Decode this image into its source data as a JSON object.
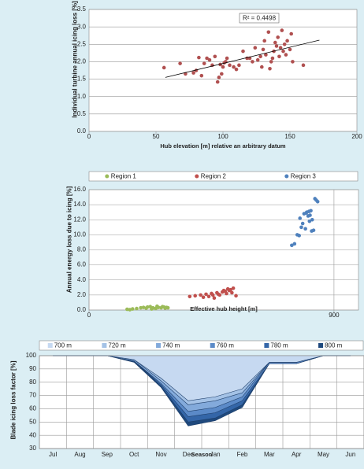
{
  "chart_data": [
    {
      "type": "scatter",
      "color": "#b05050",
      "x": [
        56,
        68,
        72,
        78,
        80,
        82,
        84,
        86,
        88,
        90,
        92,
        94,
        96,
        97,
        98,
        99,
        100,
        101,
        102,
        103,
        105,
        108,
        110,
        112,
        115,
        118,
        120,
        122,
        124,
        126,
        128,
        129,
        130,
        131,
        132,
        134,
        135,
        136,
        137,
        138,
        139,
        140,
        141,
        142,
        143,
        144,
        145,
        146,
        147,
        148,
        150,
        151,
        152,
        160
      ],
      "values": [
        1.83,
        1.95,
        1.65,
        1.68,
        1.75,
        2.12,
        1.6,
        1.95,
        2.1,
        2.05,
        1.9,
        2.15,
        1.42,
        1.55,
        1.92,
        1.65,
        1.85,
        1.97,
        2.0,
        2.1,
        1.9,
        1.85,
        1.78,
        1.9,
        2.3,
        2.1,
        2.1,
        2.0,
        2.4,
        2.05,
        2.15,
        1.85,
        2.35,
        2.6,
        2.2,
        2.85,
        1.8,
        2.0,
        2.1,
        2.3,
        2.55,
        2.45,
        2.7,
        2.15,
        2.4,
        2.9,
        2.3,
        2.5,
        2.2,
        2.6,
        2.35,
        2.8,
        2.0,
        1.9
      ],
      "trendline": {
        "x": [
          57,
          172
        ],
        "values": [
          1.55,
          2.62
        ],
        "label": "R² = 0.4498"
      },
      "xlabel": "Hub elevation [m] relative an arbitrary datum",
      "ylabel": "Individual turbine annual icing loss [%]",
      "xlim": [
        0,
        200
      ],
      "xticks": [
        0,
        50,
        100,
        150,
        200
      ],
      "ylim": [
        0,
        3.5
      ],
      "yticks": [
        {
          "value": 0,
          "label": "0.0"
        },
        {
          "value": 0.5,
          "label": "0.5"
        },
        {
          "value": 1,
          "label": "1.0"
        },
        {
          "value": 1.5,
          "label": "1.5"
        },
        {
          "value": 2,
          "label": "2.0"
        },
        {
          "value": 2.5,
          "label": "2.5"
        },
        {
          "value": 3,
          "label": "3.0"
        },
        {
          "value": 3.5,
          "label": "3.5"
        }
      ],
      "grid": true
    },
    {
      "type": "scatter",
      "series": [
        {
          "name": "Region 1",
          "color": "#9bbb59",
          "x": [
            140,
            150,
            160,
            175,
            190,
            200,
            210,
            215,
            225,
            235,
            245,
            255,
            265,
            275,
            280,
            290,
            250,
            230,
            270,
            285
          ],
          "values": [
            0.1,
            0.05,
            0.15,
            0.2,
            0.3,
            0.35,
            0.25,
            0.4,
            0.45,
            0.3,
            0.2,
            0.35,
            0.3,
            0.4,
            0.25,
            0.3,
            0.5,
            0.15,
            0.45,
            0.35
          ]
        },
        {
          "name": "Region 2",
          "color": "#c0504d",
          "x": [
            370,
            390,
            410,
            420,
            430,
            440,
            450,
            460,
            470,
            480,
            490,
            500,
            505,
            510,
            515,
            520,
            525,
            530,
            540,
            455,
            475,
            495
          ],
          "values": [
            1.8,
            1.9,
            2.0,
            1.7,
            2.1,
            1.8,
            2.2,
            1.6,
            2.3,
            2.0,
            2.4,
            2.5,
            2.2,
            2.8,
            2.6,
            2.7,
            2.3,
            2.9,
            1.9,
            2.0,
            2.1,
            2.6
          ]
        },
        {
          "name": "Region 3",
          "color": "#4f81bd",
          "x": [
            745,
            755,
            765,
            775,
            780,
            785,
            790,
            795,
            800,
            805,
            810,
            815,
            820,
            825,
            830,
            835,
            840,
            772,
            798,
            808,
            818,
            812
          ],
          "values": [
            8.6,
            8.8,
            10.0,
            12.2,
            11.0,
            11.5,
            12.8,
            10.8,
            13.0,
            12.5,
            11.8,
            13.2,
            12.0,
            10.6,
            14.8,
            14.6,
            14.4,
            9.9,
            12.9,
            13.1,
            10.5,
            12.6
          ]
        }
      ],
      "xlabel": "Effective hub height [m]",
      "ylabel": "Annual energy loss due to icing [%]",
      "xlim": [
        0,
        990
      ],
      "xticks": [
        0,
        900
      ],
      "ylim": [
        0,
        16
      ],
      "yticks": [
        {
          "value": 0,
          "label": "0.0"
        },
        {
          "value": 2,
          "label": "2.0"
        },
        {
          "value": 4,
          "label": "4.0"
        },
        {
          "value": 6,
          "label": "6.0"
        },
        {
          "value": 8,
          "label": "8.0"
        },
        {
          "value": 10,
          "label": "10.0"
        },
        {
          "value": 12,
          "label": "12.0"
        },
        {
          "value": 14,
          "label": "14.0"
        },
        {
          "value": 16,
          "label": "16.0"
        }
      ],
      "grid": true,
      "xgrid": true,
      "legend": "top"
    },
    {
      "type": "area",
      "categories": [
        "Jul",
        "Aug",
        "Sep",
        "Oct",
        "Nov",
        "Dec",
        "Jan",
        "Feb",
        "Mar",
        "Apr",
        "May",
        "Jun"
      ],
      "series": [
        {
          "name": "700 m",
          "color": "#c6d9f1",
          "values": [
            100,
            100,
            100,
            97,
            83,
            66,
            69,
            75,
            95,
            95,
            100,
            100
          ]
        },
        {
          "name": "720 m",
          "color": "#a4c2e6",
          "values": [
            100,
            100,
            100,
            97,
            81,
            63,
            66,
            72,
            95,
            95,
            100,
            100
          ]
        },
        {
          "name": "740 m",
          "color": "#83aadb",
          "values": [
            100,
            100,
            100,
            96,
            79,
            58,
            61,
            69,
            95,
            95,
            100,
            100
          ]
        },
        {
          "name": "760 m",
          "color": "#5b8ac8",
          "values": [
            100,
            100,
            100,
            96,
            78,
            54,
            57,
            66,
            94,
            94,
            100,
            100
          ]
        },
        {
          "name": "780 m",
          "color": "#3466a8",
          "values": [
            100,
            100,
            100,
            96,
            77,
            50,
            53,
            63,
            94,
            94,
            100,
            100
          ]
        },
        {
          "name": "800 m",
          "color": "#1f497d",
          "values": [
            100,
            100,
            100,
            95,
            76,
            47,
            51,
            61,
            94,
            94,
            100,
            100
          ]
        }
      ],
      "xlabel": "Season",
      "ylabel": "Blade icing loss factor [%]",
      "ylim": [
        30,
        100
      ],
      "yticks": [
        30,
        40,
        50,
        60,
        70,
        80,
        90,
        100
      ],
      "grid": true,
      "legend": "top"
    }
  ]
}
